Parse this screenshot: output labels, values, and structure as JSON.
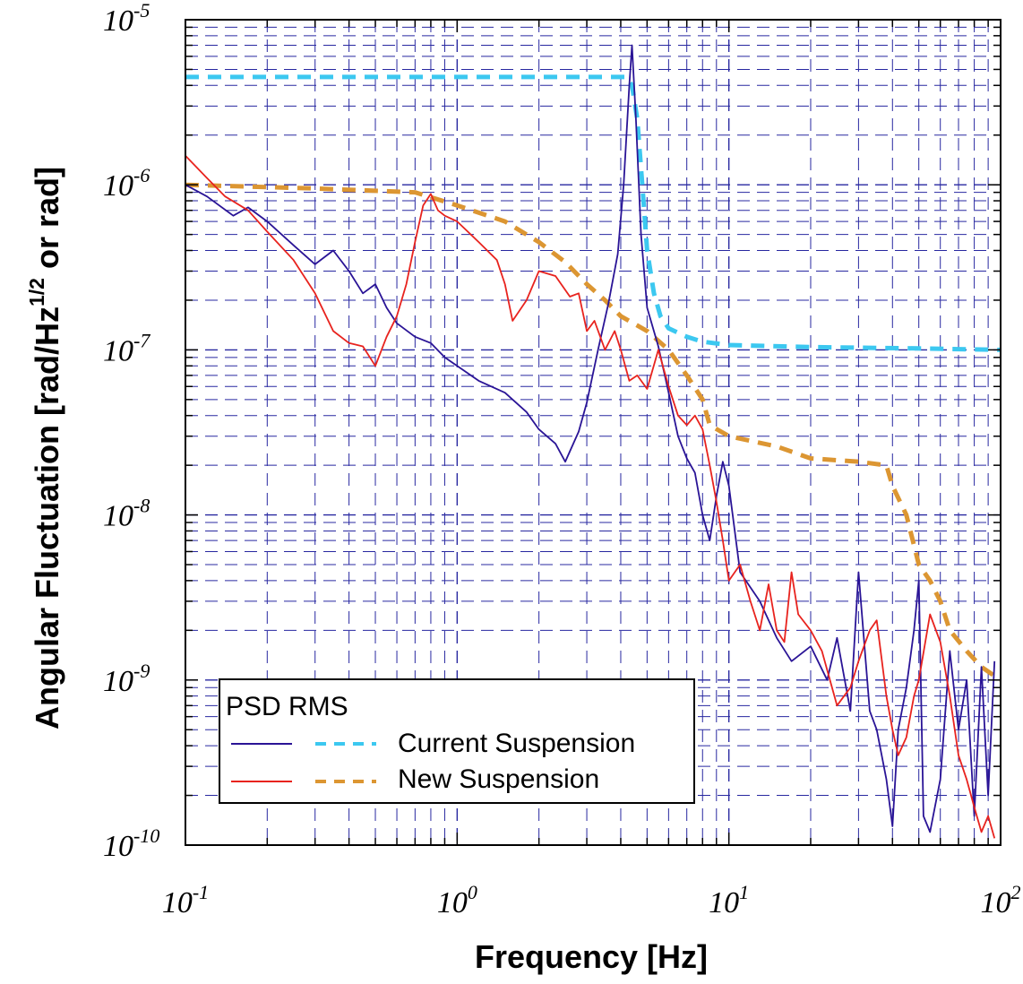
{
  "chart_data": {
    "type": "line",
    "title": "",
    "xlabel": "Frequency [Hz]",
    "ylabel": {
      "main": "Angular Fluctuation [rad/Hz",
      "superscript": "1/2",
      "suffix": " or rad]"
    },
    "xscale": "log",
    "yscale": "log",
    "xlim": [
      0.1,
      100
    ],
    "ylim": [
      1e-10,
      1e-05
    ],
    "grid": true,
    "x_ticks": [
      {
        "value": 0.1,
        "base": "10",
        "exp": "-1"
      },
      {
        "value": 1,
        "base": "10",
        "exp": "0"
      },
      {
        "value": 10,
        "base": "10",
        "exp": "1"
      },
      {
        "value": 100,
        "base": "10",
        "exp": "2"
      }
    ],
    "y_ticks": [
      {
        "value": 1e-10,
        "base": "10",
        "exp": "-10"
      },
      {
        "value": 1e-09,
        "base": "10",
        "exp": "-9"
      },
      {
        "value": 1e-08,
        "base": "10",
        "exp": "-8"
      },
      {
        "value": 1e-07,
        "base": "10",
        "exp": "-7"
      },
      {
        "value": 1e-06,
        "base": "10",
        "exp": "-6"
      },
      {
        "value": 1e-05,
        "base": "10",
        "exp": "-5"
      }
    ],
    "legend": {
      "placement": "bottom-left",
      "header": "PSD RMS",
      "entries": [
        {
          "label": "Current Suspension",
          "psd_series": "current-psd",
          "rms_series": "current-rms"
        },
        {
          "label": "New Suspension",
          "psd_series": "new-psd",
          "rms_series": "new-rms"
        }
      ]
    },
    "series": [
      {
        "id": "current-psd",
        "style": "solid",
        "color": "#2a1496",
        "points": [
          [
            0.1,
            1e-06
          ],
          [
            0.12,
            8.5e-07
          ],
          [
            0.15,
            6.5e-07
          ],
          [
            0.17,
            7.3e-07
          ],
          [
            0.2,
            6e-07
          ],
          [
            0.25,
            4.3e-07
          ],
          [
            0.3,
            3.3e-07
          ],
          [
            0.35,
            4e-07
          ],
          [
            0.4,
            3e-07
          ],
          [
            0.45,
            2.2e-07
          ],
          [
            0.5,
            2.5e-07
          ],
          [
            0.55,
            1.8e-07
          ],
          [
            0.6,
            1.45e-07
          ],
          [
            0.7,
            1.2e-07
          ],
          [
            0.8,
            1.1e-07
          ],
          [
            0.9,
            9e-08
          ],
          [
            1.0,
            8e-08
          ],
          [
            1.2,
            6.5e-08
          ],
          [
            1.5,
            5.5e-08
          ],
          [
            1.8,
            4.2e-08
          ],
          [
            2.0,
            3.3e-08
          ],
          [
            2.3,
            2.7e-08
          ],
          [
            2.5,
            2.1e-08
          ],
          [
            2.8,
            3.2e-08
          ],
          [
            3.0,
            4.8e-08
          ],
          [
            3.3,
            1e-07
          ],
          [
            3.6,
            1.9e-07
          ],
          [
            3.9,
            3.8e-07
          ],
          [
            4.1,
            1e-06
          ],
          [
            4.3,
            4e-06
          ],
          [
            4.4,
            7e-06
          ],
          [
            4.55,
            2.5e-06
          ],
          [
            4.75,
            5e-07
          ],
          [
            5.0,
            1.8e-07
          ],
          [
            5.5,
            1.05e-07
          ],
          [
            6.0,
            5.5e-08
          ],
          [
            6.5,
            3e-08
          ],
          [
            7.0,
            2.2e-08
          ],
          [
            7.5,
            1.8e-08
          ],
          [
            8.0,
            1e-08
          ],
          [
            8.5,
            7e-09
          ],
          [
            9.0,
            1.3e-08
          ],
          [
            9.5,
            2.1e-08
          ],
          [
            10.0,
            1.5e-08
          ],
          [
            11,
            4.5e-09
          ],
          [
            13,
            3e-09
          ],
          [
            15,
            1.8e-09
          ],
          [
            17,
            1.3e-09
          ],
          [
            20,
            1.6e-09
          ],
          [
            23,
            1e-09
          ],
          [
            25,
            1.8e-09
          ],
          [
            28,
            6.5e-10
          ],
          [
            30,
            4.5e-09
          ],
          [
            33,
            6.5e-10
          ],
          [
            35,
            5e-10
          ],
          [
            38,
            2.5e-10
          ],
          [
            40,
            1.3e-10
          ],
          [
            42,
            5e-10
          ],
          [
            45,
            9e-10
          ],
          [
            48,
            2e-09
          ],
          [
            50,
            4e-09
          ],
          [
            52,
            1.5e-10
          ],
          [
            55,
            1.2e-10
          ],
          [
            60,
            2.5e-10
          ],
          [
            65,
            1.5e-09
          ],
          [
            70,
            5e-10
          ],
          [
            75,
            1e-09
          ],
          [
            80,
            1.5e-10
          ],
          [
            85,
            1.2e-09
          ],
          [
            90,
            2e-10
          ],
          [
            95,
            1.3e-09
          ]
        ]
      },
      {
        "id": "new-psd",
        "style": "solid",
        "color": "#e8231e",
        "points": [
          [
            0.1,
            1.5e-06
          ],
          [
            0.12,
            1.1e-06
          ],
          [
            0.14,
            8.5e-07
          ],
          [
            0.17,
            7e-07
          ],
          [
            0.2,
            5.2e-07
          ],
          [
            0.25,
            3.5e-07
          ],
          [
            0.3,
            2.2e-07
          ],
          [
            0.35,
            1.3e-07
          ],
          [
            0.4,
            1.1e-07
          ],
          [
            0.45,
            1.05e-07
          ],
          [
            0.5,
            8e-08
          ],
          [
            0.55,
            1.2e-07
          ],
          [
            0.6,
            1.6e-07
          ],
          [
            0.65,
            2.5e-07
          ],
          [
            0.7,
            4.5e-07
          ],
          [
            0.75,
            7.5e-07
          ],
          [
            0.8,
            8.8e-07
          ],
          [
            0.85,
            7e-07
          ],
          [
            0.9,
            6.5e-07
          ],
          [
            1.0,
            6e-07
          ],
          [
            1.2,
            4.5e-07
          ],
          [
            1.4,
            3.5e-07
          ],
          [
            1.5,
            2.5e-07
          ],
          [
            1.6,
            1.5e-07
          ],
          [
            1.8,
            2e-07
          ],
          [
            2.0,
            3e-07
          ],
          [
            2.3,
            2.8e-07
          ],
          [
            2.6,
            2.1e-07
          ],
          [
            2.8,
            2.2e-07
          ],
          [
            3.0,
            1.3e-07
          ],
          [
            3.2,
            1.5e-07
          ],
          [
            3.5,
            1e-07
          ],
          [
            3.8,
            1.3e-07
          ],
          [
            4.0,
            1e-07
          ],
          [
            4.3,
            6.5e-08
          ],
          [
            4.6,
            7e-08
          ],
          [
            5.0,
            5.8e-08
          ],
          [
            5.5,
            1e-07
          ],
          [
            6.0,
            6e-08
          ],
          [
            6.5,
            4e-08
          ],
          [
            7.0,
            3.5e-08
          ],
          [
            7.5,
            4e-08
          ],
          [
            8.0,
            3.3e-08
          ],
          [
            8.5,
            2e-08
          ],
          [
            9.0,
            1.2e-08
          ],
          [
            9.5,
            7e-09
          ],
          [
            10.0,
            4e-09
          ],
          [
            11,
            5e-09
          ],
          [
            12,
            3e-09
          ],
          [
            13,
            2e-09
          ],
          [
            14,
            3.8e-09
          ],
          [
            15,
            2e-09
          ],
          [
            16,
            1.7e-09
          ],
          [
            17,
            4.5e-09
          ],
          [
            18,
            2.5e-09
          ],
          [
            20,
            2e-09
          ],
          [
            22,
            1.5e-09
          ],
          [
            25,
            7e-10
          ],
          [
            28,
            9e-10
          ],
          [
            30,
            1.3e-09
          ],
          [
            33,
            2e-09
          ],
          [
            35,
            2.3e-09
          ],
          [
            38,
            8e-10
          ],
          [
            40,
            5e-10
          ],
          [
            42,
            3.5e-10
          ],
          [
            45,
            4.5e-10
          ],
          [
            48,
            8e-10
          ],
          [
            50,
            1e-09
          ],
          [
            55,
            2.5e-09
          ],
          [
            60,
            1.7e-09
          ],
          [
            65,
            8e-10
          ],
          [
            70,
            3.5e-10
          ],
          [
            75,
            2.5e-10
          ],
          [
            80,
            1.7e-10
          ],
          [
            85,
            1.2e-10
          ],
          [
            90,
            1.5e-10
          ],
          [
            95,
            1.1e-10
          ]
        ]
      },
      {
        "id": "current-rms",
        "style": "dashed",
        "color": "#3cc8f0",
        "points": [
          [
            0.1,
            4.5e-06
          ],
          [
            4.2,
            4.5e-06
          ],
          [
            4.4,
            4e-06
          ],
          [
            4.6,
            2.5e-06
          ],
          [
            4.8,
            1e-06
          ],
          [
            5.0,
            4e-07
          ],
          [
            5.3,
            2.2e-07
          ],
          [
            5.6,
            1.6e-07
          ],
          [
            6.0,
            1.35e-07
          ],
          [
            7.0,
            1.2e-07
          ],
          [
            8.0,
            1.12e-07
          ],
          [
            10,
            1.07e-07
          ],
          [
            20,
            1.04e-07
          ],
          [
            50,
            1.02e-07
          ],
          [
            100,
            1e-07
          ]
        ]
      },
      {
        "id": "new-rms",
        "style": "dashed",
        "color": "#dc9632",
        "points": [
          [
            0.1,
            1e-06
          ],
          [
            0.3,
            9.5e-07
          ],
          [
            0.7,
            9e-07
          ],
          [
            1.0,
            7.5e-07
          ],
          [
            1.5,
            6e-07
          ],
          [
            2.0,
            4.5e-07
          ],
          [
            2.5,
            3.4e-07
          ],
          [
            3.0,
            2.5e-07
          ],
          [
            3.5,
            2e-07
          ],
          [
            4.0,
            1.6e-07
          ],
          [
            5.0,
            1.3e-07
          ],
          [
            6.0,
            1e-07
          ],
          [
            7.0,
            7e-08
          ],
          [
            8.0,
            5e-08
          ],
          [
            8.5,
            3.5e-08
          ],
          [
            10,
            3e-08
          ],
          [
            15,
            2.6e-08
          ],
          [
            20,
            2.2e-08
          ],
          [
            30,
            2.1e-08
          ],
          [
            38,
            2e-08
          ],
          [
            40,
            1.5e-08
          ],
          [
            45,
            1e-08
          ],
          [
            50,
            5e-09
          ],
          [
            55,
            4e-09
          ],
          [
            60,
            3e-09
          ],
          [
            65,
            2e-09
          ],
          [
            75,
            1.5e-09
          ],
          [
            85,
            1.2e-09
          ],
          [
            100,
            1e-09
          ]
        ]
      }
    ]
  }
}
